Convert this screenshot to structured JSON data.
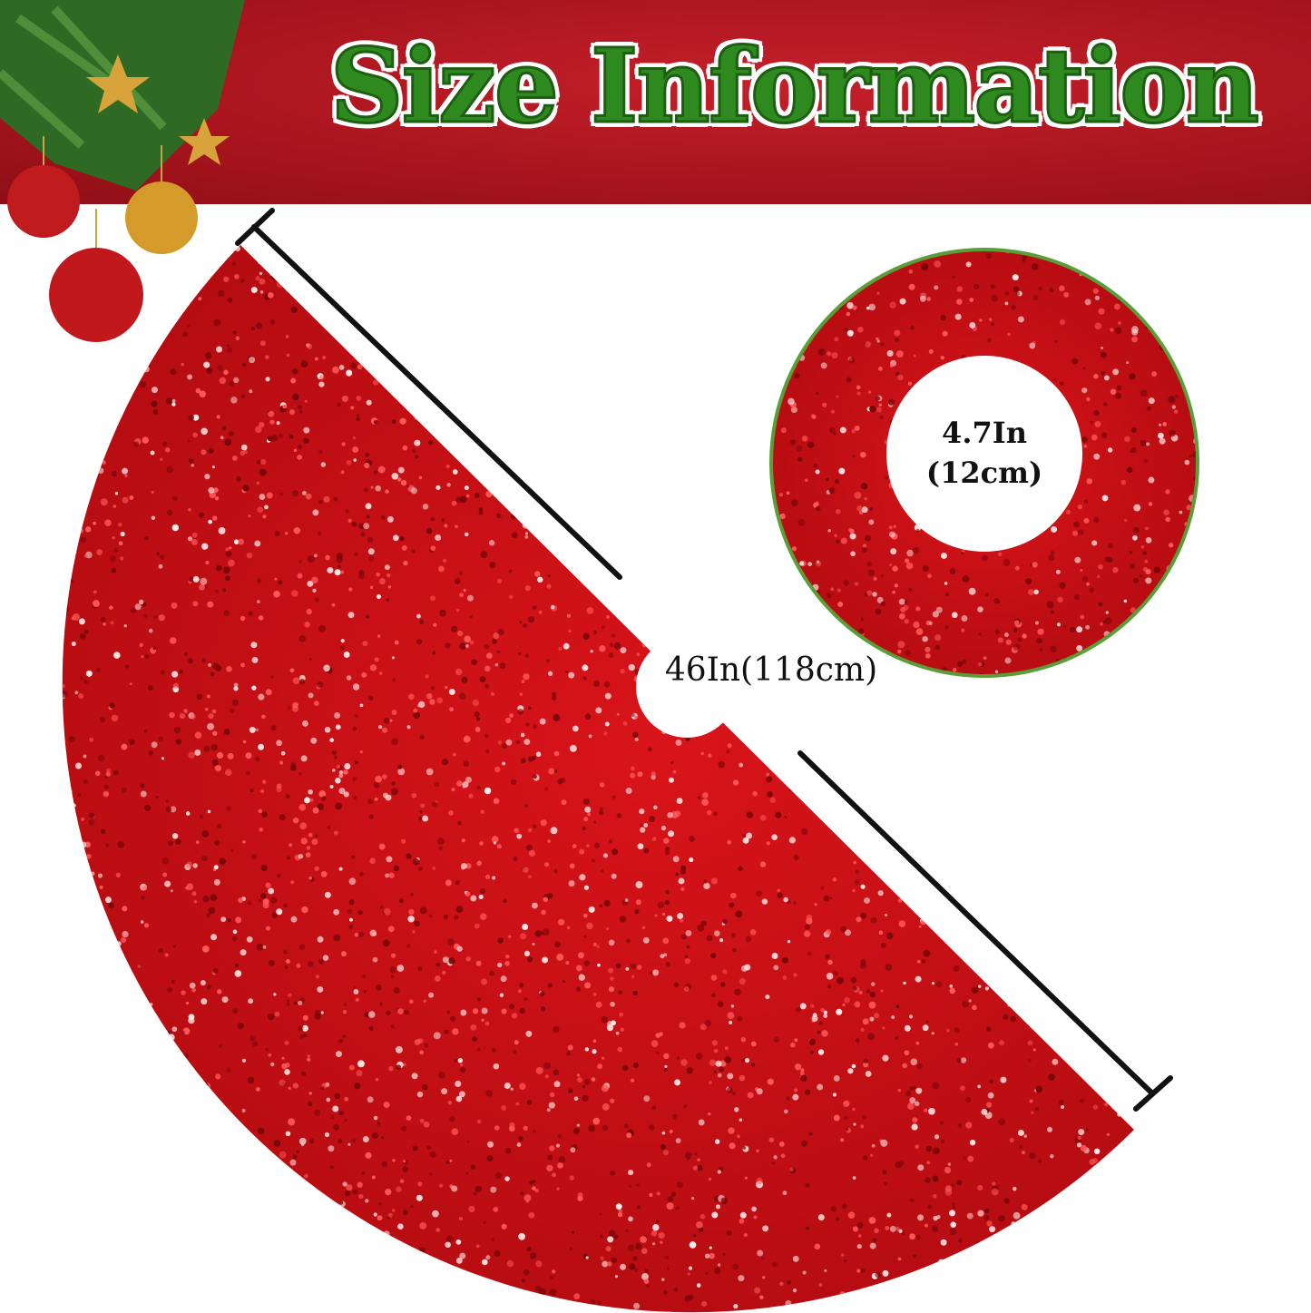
{
  "banner": {
    "title": "Size Information"
  },
  "skirt": {
    "diameter_label": "46In(118cm)"
  },
  "inset": {
    "hole_label_in": "4.7In",
    "hole_label_cm": "(12cm)"
  },
  "colors": {
    "banner_red": "#a8141d",
    "title_green": "#2e8a1f",
    "skirt_red": "#c80f14",
    "ring_green": "#5a9e3a"
  }
}
